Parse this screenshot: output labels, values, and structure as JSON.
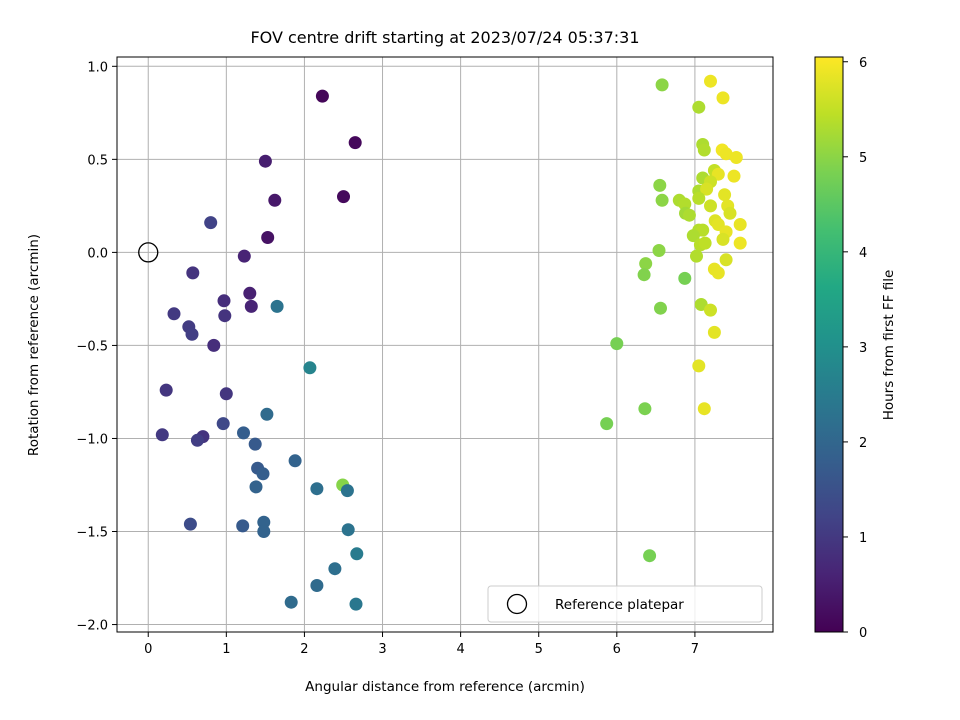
{
  "chart_data": {
    "type": "scatter",
    "title": "FOV centre drift starting at 2023/07/24 05:37:31",
    "xlabel": "Angular distance from reference (arcmin)",
    "ylabel": "Rotation from reference (arcmin)",
    "xlim": [
      -0.4,
      8.0
    ],
    "ylim": [
      -2.04,
      1.05
    ],
    "x_ticks": [
      0,
      1,
      2,
      3,
      4,
      5,
      6,
      7
    ],
    "y_ticks": [
      -2.0,
      -1.5,
      -1.0,
      -0.5,
      0.0,
      0.5,
      1.0
    ],
    "x_tick_labels": [
      "0",
      "1",
      "2",
      "3",
      "4",
      "5",
      "6",
      "7"
    ],
    "y_tick_labels": [
      "−2.0",
      "−1.5",
      "−1.0",
      "−0.5",
      "0.0",
      "0.5",
      "1.0"
    ],
    "grid": true,
    "colorbar": {
      "label": "Hours from first FF file",
      "range": [
        0,
        6.05
      ],
      "ticks": [
        0,
        1,
        2,
        3,
        4,
        5,
        6
      ],
      "tick_labels": [
        "0",
        "1",
        "2",
        "3",
        "4",
        "5",
        "6"
      ],
      "colormap": "viridis"
    },
    "reference": {
      "x": 0.0,
      "y": 0.0,
      "label": "Reference platepar"
    },
    "legend_position": "lower-right",
    "points": [
      {
        "x": 2.23,
        "y": 0.84,
        "c": 0.1
      },
      {
        "x": 2.65,
        "y": 0.59,
        "c": 0.12
      },
      {
        "x": 2.5,
        "y": 0.3,
        "c": 0.15
      },
      {
        "x": 1.5,
        "y": 0.49,
        "c": 0.5
      },
      {
        "x": 1.62,
        "y": 0.28,
        "c": 0.4
      },
      {
        "x": 1.53,
        "y": 0.08,
        "c": 0.3
      },
      {
        "x": 0.8,
        "y": 0.16,
        "c": 1.2
      },
      {
        "x": 1.23,
        "y": -0.02,
        "c": 0.6
      },
      {
        "x": 0.57,
        "y": -0.11,
        "c": 0.9
      },
      {
        "x": 1.3,
        "y": -0.22,
        "c": 0.55
      },
      {
        "x": 1.32,
        "y": -0.29,
        "c": 0.6
      },
      {
        "x": 0.97,
        "y": -0.26,
        "c": 0.8
      },
      {
        "x": 0.98,
        "y": -0.34,
        "c": 0.9
      },
      {
        "x": 0.33,
        "y": -0.33,
        "c": 1.0
      },
      {
        "x": 0.52,
        "y": -0.4,
        "c": 1.05
      },
      {
        "x": 0.56,
        "y": -0.44,
        "c": 1.1
      },
      {
        "x": 0.84,
        "y": -0.5,
        "c": 0.8
      },
      {
        "x": 1.65,
        "y": -0.29,
        "c": 2.3
      },
      {
        "x": 2.07,
        "y": -0.62,
        "c": 2.7
      },
      {
        "x": 0.23,
        "y": -0.74,
        "c": 0.95
      },
      {
        "x": 1.0,
        "y": -0.76,
        "c": 0.95
      },
      {
        "x": 0.18,
        "y": -0.98,
        "c": 1.0
      },
      {
        "x": 0.7,
        "y": -0.99,
        "c": 0.9
      },
      {
        "x": 0.63,
        "y": -1.01,
        "c": 1.1
      },
      {
        "x": 0.96,
        "y": -0.92,
        "c": 1.3
      },
      {
        "x": 1.22,
        "y": -0.97,
        "c": 1.8
      },
      {
        "x": 1.37,
        "y": -1.03,
        "c": 1.7
      },
      {
        "x": 1.52,
        "y": -0.87,
        "c": 2.1
      },
      {
        "x": 1.88,
        "y": -1.12,
        "c": 1.9
      },
      {
        "x": 1.4,
        "y": -1.16,
        "c": 1.7
      },
      {
        "x": 1.47,
        "y": -1.19,
        "c": 1.8
      },
      {
        "x": 1.38,
        "y": -1.26,
        "c": 1.9
      },
      {
        "x": 2.16,
        "y": -1.27,
        "c": 2.2
      },
      {
        "x": 2.49,
        "y": -1.25,
        "c": 4.95
      },
      {
        "x": 2.55,
        "y": -1.28,
        "c": 2.3
      },
      {
        "x": 0.54,
        "y": -1.46,
        "c": 1.4
      },
      {
        "x": 1.21,
        "y": -1.47,
        "c": 1.7
      },
      {
        "x": 1.48,
        "y": -1.45,
        "c": 1.9
      },
      {
        "x": 1.48,
        "y": -1.5,
        "c": 1.9
      },
      {
        "x": 2.56,
        "y": -1.49,
        "c": 2.3
      },
      {
        "x": 2.67,
        "y": -1.62,
        "c": 2.5
      },
      {
        "x": 2.39,
        "y": -1.7,
        "c": 2.2
      },
      {
        "x": 2.16,
        "y": -1.79,
        "c": 2.1
      },
      {
        "x": 1.83,
        "y": -1.88,
        "c": 2.1
      },
      {
        "x": 2.66,
        "y": -1.89,
        "c": 2.4
      },
      {
        "x": 6.58,
        "y": 0.9,
        "c": 5.0
      },
      {
        "x": 7.2,
        "y": 0.92,
        "c": 5.9
      },
      {
        "x": 7.36,
        "y": 0.83,
        "c": 5.9
      },
      {
        "x": 7.05,
        "y": 0.78,
        "c": 5.3
      },
      {
        "x": 7.1,
        "y": 0.58,
        "c": 5.3
      },
      {
        "x": 7.12,
        "y": 0.55,
        "c": 5.35
      },
      {
        "x": 7.35,
        "y": 0.55,
        "c": 5.95
      },
      {
        "x": 7.4,
        "y": 0.53,
        "c": 5.9
      },
      {
        "x": 7.53,
        "y": 0.51,
        "c": 5.9
      },
      {
        "x": 7.25,
        "y": 0.44,
        "c": 5.5
      },
      {
        "x": 7.3,
        "y": 0.42,
        "c": 5.85
      },
      {
        "x": 7.1,
        "y": 0.4,
        "c": 5.3
      },
      {
        "x": 7.2,
        "y": 0.38,
        "c": 5.6
      },
      {
        "x": 7.5,
        "y": 0.41,
        "c": 5.9
      },
      {
        "x": 7.05,
        "y": 0.33,
        "c": 5.3
      },
      {
        "x": 7.15,
        "y": 0.34,
        "c": 5.7
      },
      {
        "x": 7.38,
        "y": 0.31,
        "c": 5.8
      },
      {
        "x": 6.55,
        "y": 0.36,
        "c": 5.0
      },
      {
        "x": 7.05,
        "y": 0.29,
        "c": 5.4
      },
      {
        "x": 6.58,
        "y": 0.28,
        "c": 5.0
      },
      {
        "x": 6.8,
        "y": 0.28,
        "c": 5.3
      },
      {
        "x": 6.87,
        "y": 0.26,
        "c": 5.35
      },
      {
        "x": 7.2,
        "y": 0.25,
        "c": 5.6
      },
      {
        "x": 7.42,
        "y": 0.25,
        "c": 5.8
      },
      {
        "x": 6.88,
        "y": 0.21,
        "c": 5.2
      },
      {
        "x": 6.93,
        "y": 0.2,
        "c": 5.3
      },
      {
        "x": 7.45,
        "y": 0.21,
        "c": 5.7
      },
      {
        "x": 7.26,
        "y": 0.17,
        "c": 5.75
      },
      {
        "x": 7.3,
        "y": 0.15,
        "c": 5.8
      },
      {
        "x": 7.58,
        "y": 0.15,
        "c": 5.85
      },
      {
        "x": 7.05,
        "y": 0.12,
        "c": 5.35
      },
      {
        "x": 7.1,
        "y": 0.12,
        "c": 5.4
      },
      {
        "x": 7.4,
        "y": 0.11,
        "c": 5.85
      },
      {
        "x": 6.98,
        "y": 0.09,
        "c": 5.3
      },
      {
        "x": 7.36,
        "y": 0.07,
        "c": 5.7
      },
      {
        "x": 7.07,
        "y": 0.04,
        "c": 5.4
      },
      {
        "x": 7.13,
        "y": 0.05,
        "c": 5.45
      },
      {
        "x": 7.58,
        "y": 0.05,
        "c": 5.9
      },
      {
        "x": 6.54,
        "y": 0.01,
        "c": 5.0
      },
      {
        "x": 7.02,
        "y": -0.02,
        "c": 5.35
      },
      {
        "x": 7.4,
        "y": -0.04,
        "c": 5.7
      },
      {
        "x": 6.37,
        "y": -0.06,
        "c": 5.0
      },
      {
        "x": 7.25,
        "y": -0.09,
        "c": 5.85
      },
      {
        "x": 7.3,
        "y": -0.11,
        "c": 5.85
      },
      {
        "x": 6.35,
        "y": -0.12,
        "c": 4.9
      },
      {
        "x": 6.87,
        "y": -0.14,
        "c": 4.8
      },
      {
        "x": 7.08,
        "y": -0.28,
        "c": 5.3
      },
      {
        "x": 6.56,
        "y": -0.3,
        "c": 4.9
      },
      {
        "x": 7.2,
        "y": -0.31,
        "c": 5.6
      },
      {
        "x": 7.25,
        "y": -0.43,
        "c": 5.8
      },
      {
        "x": 6.0,
        "y": -0.49,
        "c": 4.8
      },
      {
        "x": 7.05,
        "y": -0.61,
        "c": 5.8
      },
      {
        "x": 7.12,
        "y": -0.84,
        "c": 5.85
      },
      {
        "x": 6.36,
        "y": -0.84,
        "c": 4.85
      },
      {
        "x": 5.87,
        "y": -0.92,
        "c": 4.8
      },
      {
        "x": 6.42,
        "y": -1.63,
        "c": 4.8
      }
    ]
  }
}
